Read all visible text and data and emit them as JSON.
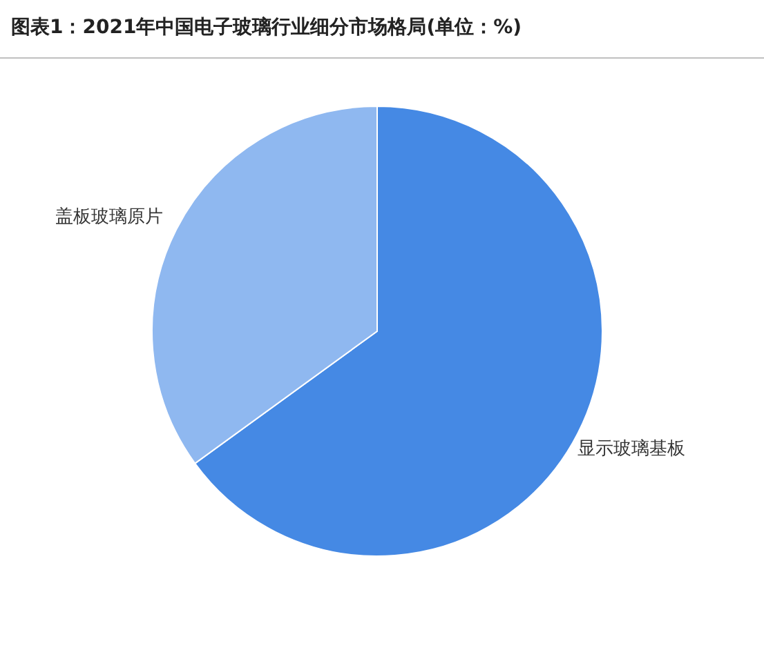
{
  "chart_data": {
    "type": "pie",
    "title": "图表1：2021年中国电子玻璃行业细分市场格局(单位：%)",
    "categories": [
      "显示玻璃基板",
      "盖板玻璃原片"
    ],
    "values": [
      65,
      35
    ],
    "colors": [
      "#4589e4",
      "#8fb8f0"
    ]
  }
}
